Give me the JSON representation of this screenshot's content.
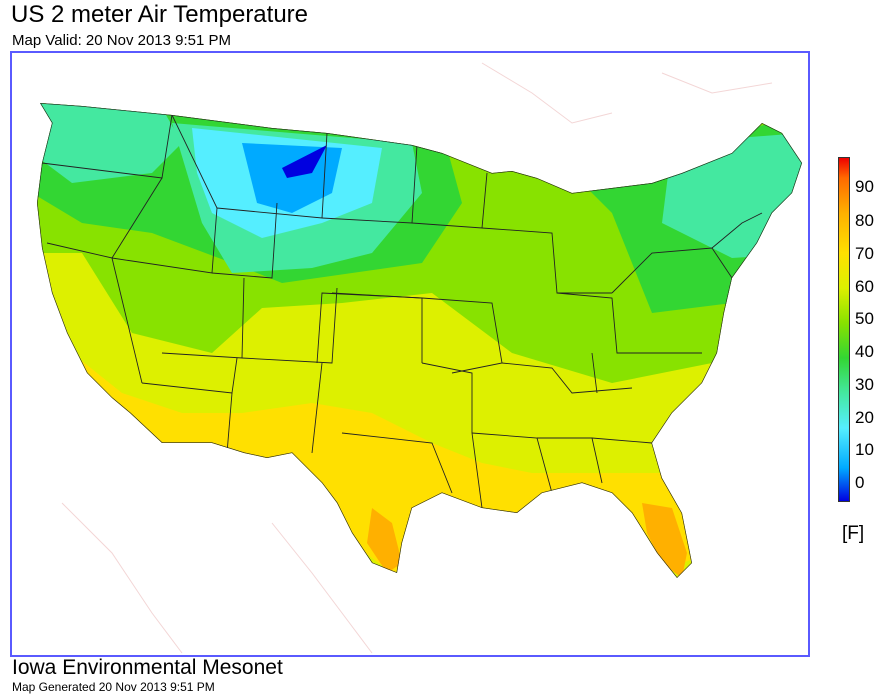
{
  "header": {
    "title": "US 2 meter Air Temperature",
    "subtitle": "Map Valid: 20 Nov 2013 9:51 PM"
  },
  "legend": {
    "ticks": [
      "90",
      "80",
      "70",
      "60",
      "50",
      "40",
      "30",
      "20",
      "10",
      "0"
    ],
    "units": "[F]",
    "colors": {
      "c_neg": "#0000e0",
      "c0": "#00aaff",
      "c10": "#55eeff",
      "c20": "#44e8a0",
      "c30": "#33d633",
      "c40": "#88e200",
      "c50": "#ddf000",
      "c60": "#ffe000",
      "c70": "#ffb000",
      "c80": "#ff6a00",
      "c90": "#ee0000"
    }
  },
  "footer": {
    "org": "Iowa Environmental Mesonet",
    "generated": "Map Generated 20 Nov 2013 9:51 PM"
  }
}
